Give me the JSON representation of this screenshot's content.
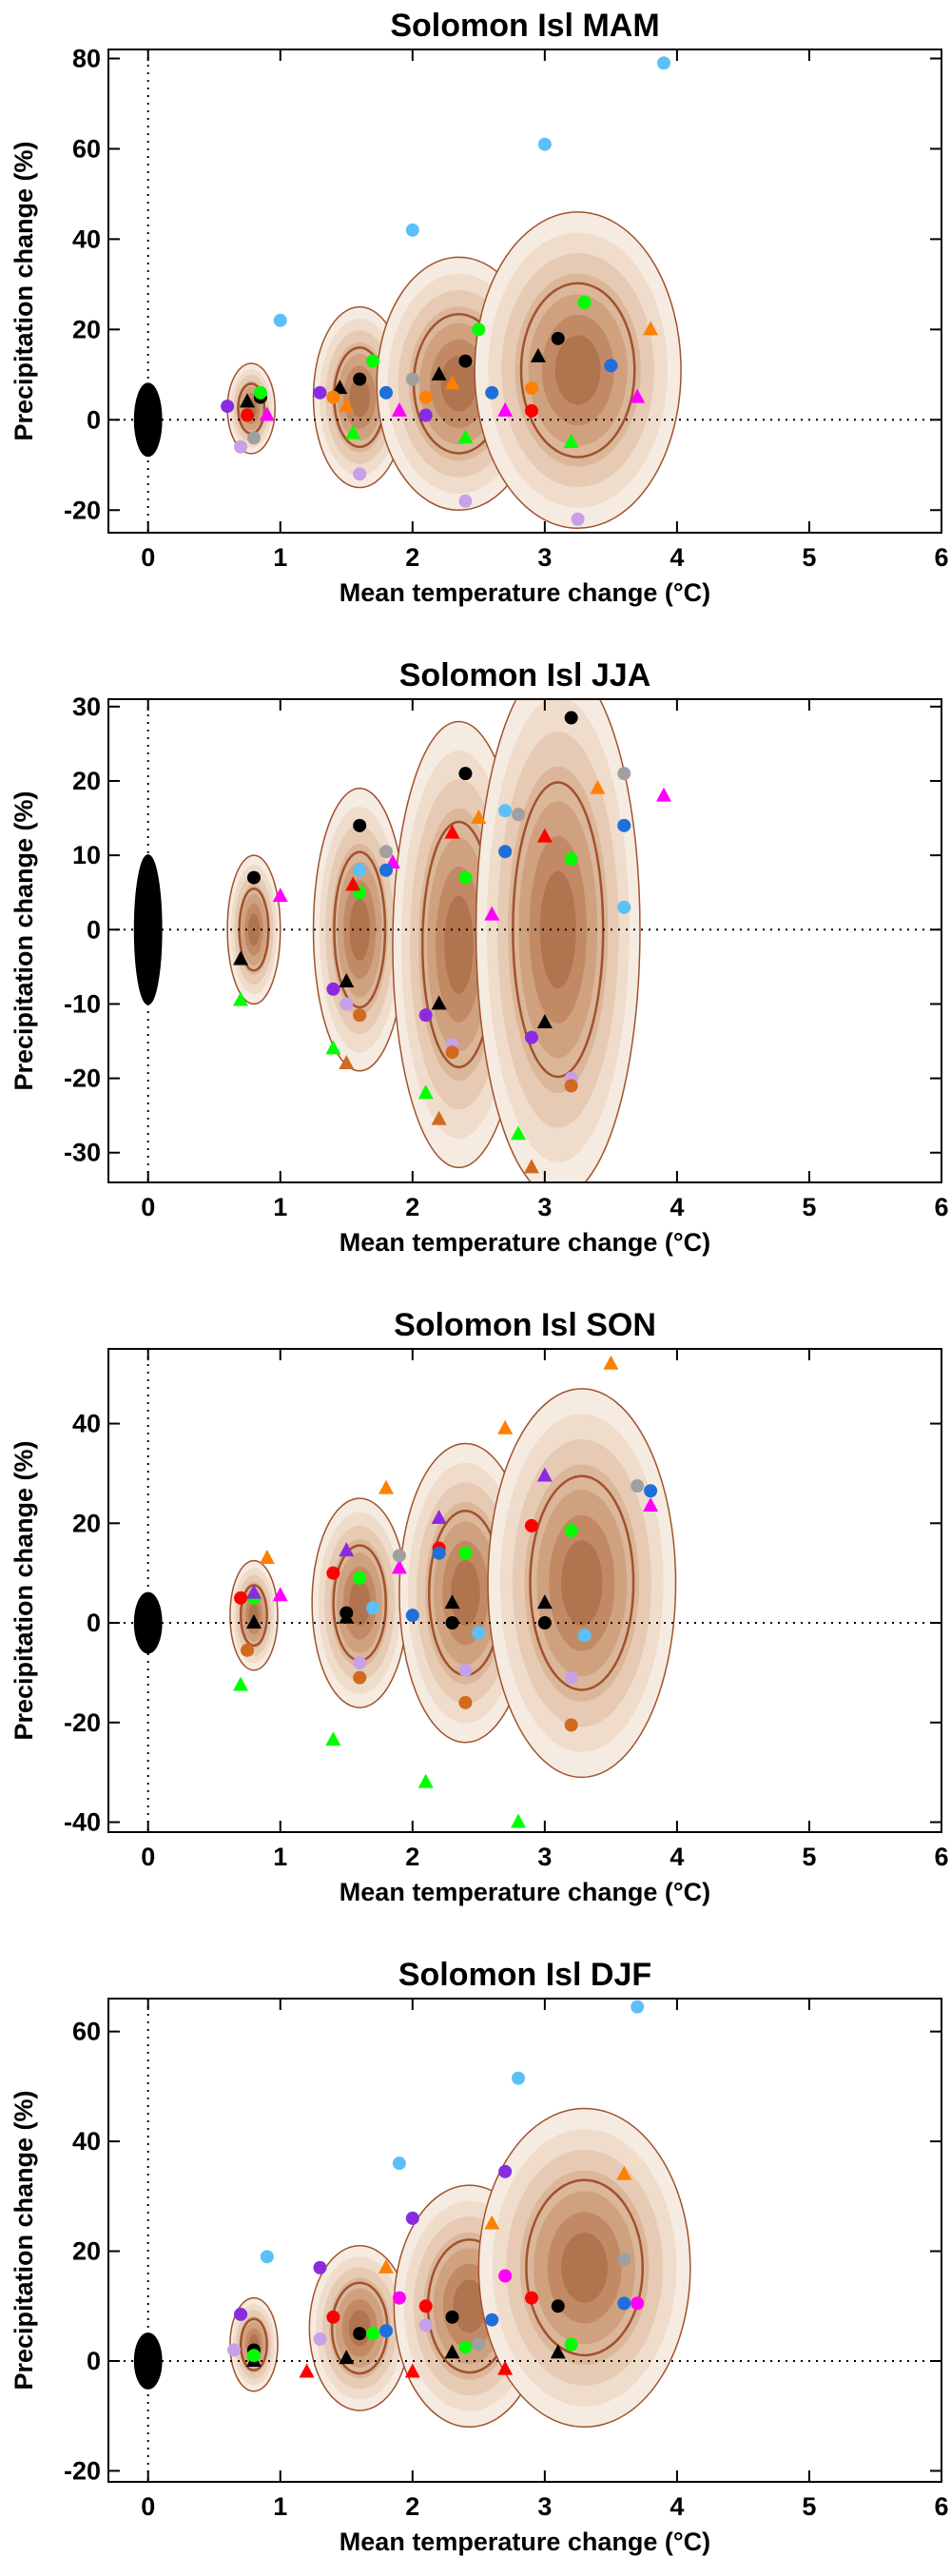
{
  "chart_data": [
    {
      "type": "scatter",
      "title": "Solomon Isl MAM",
      "x_label": "Mean temperature change (°C)",
      "y_label": "Precipitation change (%)",
      "xlim": [
        -0.3,
        6
      ],
      "xticks": [
        0,
        1,
        2,
        3,
        4,
        5,
        6
      ],
      "ylim": [
        -25,
        82
      ],
      "yticks": [
        -20,
        0,
        20,
        40,
        60,
        80
      ],
      "reference_lines": {
        "x": 0,
        "y": 0
      },
      "ellipses": [
        {
          "color": "#000000",
          "cx": 0,
          "rx": 0.1,
          "cy": 0,
          "ry": 8
        },
        {
          "color": "#a0522d",
          "cx": 0.78,
          "rx": 0.18,
          "cy": 2.5,
          "ry": 10
        },
        {
          "color": "#a0522d",
          "cx": 1.6,
          "rx": 0.35,
          "cy": 5,
          "ry": 20
        },
        {
          "color": "#a0522d",
          "cx": 2.35,
          "rx": 0.62,
          "cy": 8,
          "ry": 28
        },
        {
          "color": "#a0522d",
          "cx": 3.25,
          "rx": 0.78,
          "cy": 11,
          "ry": 35
        }
      ],
      "series": [
        {
          "color": "#5bc0f8",
          "marker": "circle",
          "x": [
            1.0,
            2.0,
            3.0,
            3.9
          ],
          "values": [
            22,
            42,
            61,
            79
          ]
        },
        {
          "color": "#000000",
          "marker": "circle",
          "x": [
            0.85,
            1.6,
            2.4,
            3.1
          ],
          "values": [
            5,
            9,
            13,
            18
          ]
        },
        {
          "color": "#000000",
          "marker": "triangle",
          "x": [
            0.75,
            1.45,
            2.2,
            2.95
          ],
          "values": [
            4,
            7,
            10,
            14
          ]
        },
        {
          "color": "#00ff00",
          "marker": "circle",
          "x": [
            0.85,
            1.7,
            2.5,
            3.3
          ],
          "values": [
            6,
            13,
            20,
            26
          ]
        },
        {
          "color": "#00ff00",
          "marker": "triangle",
          "x": [
            0.9,
            1.55,
            2.4,
            3.2
          ],
          "values": [
            1,
            -3,
            -4,
            -5
          ]
        },
        {
          "color": "#8a2be2",
          "marker": "circle",
          "x": [
            0.6,
            1.3,
            2.1,
            3.5
          ],
          "values": [
            3,
            6,
            1,
            12
          ]
        },
        {
          "color": "#c8a0e8",
          "marker": "circle",
          "x": [
            0.7,
            1.6,
            2.4,
            3.25
          ],
          "values": [
            -6,
            -12,
            -18,
            -22
          ]
        },
        {
          "color": "#ff8000",
          "marker": "triangle",
          "x": [
            1.5,
            2.3,
            3.8
          ],
          "values": [
            3,
            8,
            20
          ]
        },
        {
          "color": "#ff8000",
          "marker": "circle",
          "x": [
            1.4,
            2.1,
            2.9
          ],
          "values": [
            5,
            5,
            7
          ]
        },
        {
          "color": "#ff00ff",
          "marker": "triangle",
          "x": [
            0.9,
            1.9,
            2.7,
            3.7
          ],
          "values": [
            1,
            2,
            2,
            5
          ]
        },
        {
          "color": "#1e6fd9",
          "marker": "circle",
          "x": [
            1.8,
            2.6,
            3.5
          ],
          "values": [
            6,
            6,
            12
          ]
        },
        {
          "color": "#a0a0a0",
          "marker": "circle",
          "x": [
            0.8,
            2.0
          ],
          "values": [
            -4,
            9
          ]
        },
        {
          "color": "#ff0000",
          "marker": "circle",
          "x": [
            0.75,
            2.9
          ],
          "values": [
            1,
            2
          ]
        }
      ]
    },
    {
      "type": "scatter",
      "title": "Solomon Isl JJA",
      "x_label": "Mean temperature change (°C)",
      "y_label": "Precipitation change (%)",
      "xlim": [
        -0.3,
        6
      ],
      "xticks": [
        0,
        1,
        2,
        3,
        4,
        5,
        6
      ],
      "ylim": [
        -34,
        31
      ],
      "yticks": [
        -30,
        -20,
        -10,
        0,
        10,
        20,
        30
      ],
      "reference_lines": {
        "x": 0,
        "y": 0
      },
      "ellipses": [
        {
          "color": "#000000",
          "cx": 0,
          "rx": 0.1,
          "cy": 0,
          "ry": 10
        },
        {
          "color": "#a0522d",
          "cx": 0.8,
          "rx": 0.2,
          "cy": 0,
          "ry": 10
        },
        {
          "color": "#a0522d",
          "cx": 1.6,
          "rx": 0.35,
          "cy": 0,
          "ry": 19
        },
        {
          "color": "#a0522d",
          "cx": 2.35,
          "rx": 0.5,
          "cy": -2,
          "ry": 30
        },
        {
          "color": "#a0522d",
          "cx": 3.1,
          "rx": 0.62,
          "cy": 0,
          "ry": 36
        }
      ],
      "series": [
        {
          "color": "#000000",
          "marker": "circle",
          "x": [
            0.8,
            1.6,
            2.4,
            3.2
          ],
          "values": [
            7,
            14,
            21,
            28.5
          ]
        },
        {
          "color": "#000000",
          "marker": "triangle",
          "x": [
            0.7,
            1.5,
            2.2,
            3.0
          ],
          "values": [
            -4,
            -7,
            -10,
            -12.5
          ]
        },
        {
          "color": "#00ff00",
          "marker": "triangle",
          "x": [
            0.7,
            1.4,
            2.1,
            2.8
          ],
          "values": [
            -9.5,
            -16,
            -22,
            -27.5
          ]
        },
        {
          "color": "#00ff00",
          "marker": "circle",
          "x": [
            1.6,
            2.4,
            3.2
          ],
          "values": [
            5,
            7,
            9.5
          ]
        },
        {
          "color": "#d2691e",
          "marker": "triangle",
          "x": [
            1.5,
            2.2,
            2.9
          ],
          "values": [
            -18,
            -25.5,
            -32
          ]
        },
        {
          "color": "#ff8000",
          "marker": "triangle",
          "x": [
            2.5,
            3.4
          ],
          "values": [
            15,
            19
          ]
        },
        {
          "color": "#ff00ff",
          "marker": "triangle",
          "x": [
            1.0,
            1.85,
            2.6,
            3.9
          ],
          "values": [
            4.5,
            9,
            2,
            18
          ]
        },
        {
          "color": "#8a2be2",
          "marker": "circle",
          "x": [
            1.4,
            2.1,
            2.9
          ],
          "values": [
            -8,
            -11.5,
            -14.5
          ]
        },
        {
          "color": "#5bc0f8",
          "marker": "circle",
          "x": [
            1.6,
            2.7,
            3.6
          ],
          "values": [
            8,
            16,
            3
          ]
        },
        {
          "color": "#1e6fd9",
          "marker": "circle",
          "x": [
            1.8,
            2.7,
            3.6
          ],
          "values": [
            8,
            10.5,
            14
          ]
        },
        {
          "color": "#ff0000",
          "marker": "triangle",
          "x": [
            1.55,
            2.3,
            3.0
          ],
          "values": [
            6,
            13,
            12.5
          ]
        },
        {
          "color": "#a0a0a0",
          "marker": "circle",
          "x": [
            1.8,
            2.8,
            3.6
          ],
          "values": [
            10.5,
            15.5,
            21
          ]
        },
        {
          "color": "#c8a0e8",
          "marker": "circle",
          "x": [
            1.5,
            2.3,
            3.2
          ],
          "values": [
            -10,
            -15.5,
            -20
          ]
        },
        {
          "color": "#d2691e",
          "marker": "circle",
          "x": [
            1.6,
            2.3,
            3.2
          ],
          "values": [
            -11.5,
            -16.5,
            -21
          ]
        }
      ]
    },
    {
      "type": "scatter",
      "title": "Solomon Isl SON",
      "x_label": "Mean temperature change (°C)",
      "y_label": "Precipitation change (%)",
      "xlim": [
        -0.3,
        6
      ],
      "xticks": [
        0,
        1,
        2,
        3,
        4,
        5,
        6
      ],
      "ylim": [
        -42,
        55
      ],
      "yticks": [
        -40,
        -20,
        0,
        20,
        40
      ],
      "reference_lines": {
        "x": 0,
        "y": 0
      },
      "ellipses": [
        {
          "color": "#000000",
          "cx": 0,
          "rx": 0.1,
          "cy": 0,
          "ry": 6
        },
        {
          "color": "#a0522d",
          "cx": 0.8,
          "rx": 0.18,
          "cy": 1.5,
          "ry": 11
        },
        {
          "color": "#a0522d",
          "cx": 1.6,
          "rx": 0.36,
          "cy": 4,
          "ry": 21
        },
        {
          "color": "#a0522d",
          "cx": 2.4,
          "rx": 0.5,
          "cy": 6,
          "ry": 30
        },
        {
          "color": "#a0522d",
          "cx": 3.28,
          "rx": 0.71,
          "cy": 8,
          "ry": 39
        }
      ],
      "series": [
        {
          "color": "#ff8000",
          "marker": "triangle",
          "x": [
            0.9,
            1.8,
            2.7,
            3.5
          ],
          "values": [
            13,
            27,
            39,
            52
          ]
        },
        {
          "color": "#00ff00",
          "marker": "triangle",
          "x": [
            0.7,
            1.4,
            2.1,
            2.8
          ],
          "values": [
            -12.5,
            -23.5,
            -32,
            -40
          ]
        },
        {
          "color": "#00ff00",
          "marker": "circle",
          "x": [
            0.8,
            1.6,
            2.4,
            3.2
          ],
          "values": [
            5,
            9,
            14,
            18.5
          ]
        },
        {
          "color": "#8a2be2",
          "marker": "triangle",
          "x": [
            0.8,
            1.5,
            2.2,
            3.0
          ],
          "values": [
            6,
            14.5,
            21,
            29.5
          ]
        },
        {
          "color": "#000000",
          "marker": "triangle",
          "x": [
            0.8,
            1.5,
            2.3,
            3.0
          ],
          "values": [
            0,
            1,
            4,
            4
          ]
        },
        {
          "color": "#000000",
          "marker": "circle",
          "x": [
            1.5,
            2.3,
            3.0
          ],
          "values": [
            2,
            0,
            0
          ]
        },
        {
          "color": "#ff0000",
          "marker": "circle",
          "x": [
            0.7,
            1.4,
            2.2,
            2.9
          ],
          "values": [
            5,
            10,
            15,
            19.5
          ]
        },
        {
          "color": "#d2691e",
          "marker": "circle",
          "x": [
            0.75,
            1.6,
            2.4,
            3.2
          ],
          "values": [
            -5.5,
            -11,
            -16,
            -20.5
          ]
        },
        {
          "color": "#ff00ff",
          "marker": "triangle",
          "x": [
            1.0,
            1.9,
            3.8
          ],
          "values": [
            5.5,
            11,
            23.5
          ]
        },
        {
          "color": "#a0a0a0",
          "marker": "circle",
          "x": [
            1.9,
            3.7
          ],
          "values": [
            13.5,
            27.5
          ]
        },
        {
          "color": "#1e6fd9",
          "marker": "circle",
          "x": [
            2.0,
            2.2,
            3.8
          ],
          "values": [
            1.5,
            14,
            26.5
          ]
        },
        {
          "color": "#5bc0f8",
          "marker": "circle",
          "x": [
            1.7,
            2.5,
            3.3
          ],
          "values": [
            3,
            -2,
            -2.5
          ]
        },
        {
          "color": "#c8a0e8",
          "marker": "circle",
          "x": [
            1.6,
            2.4,
            3.2
          ],
          "values": [
            -8,
            -9.5,
            -11
          ]
        }
      ]
    },
    {
      "type": "scatter",
      "title": "Solomon Isl DJF",
      "x_label": "Mean temperature change (°C)",
      "y_label": "Precipitation change (%)",
      "xlim": [
        -0.3,
        6
      ],
      "xticks": [
        0,
        1,
        2,
        3,
        4,
        5,
        6
      ],
      "ylim": [
        -22,
        66
      ],
      "yticks": [
        -20,
        0,
        20,
        40,
        60
      ],
      "reference_lines": {
        "x": 0,
        "y": 0
      },
      "ellipses": [
        {
          "color": "#000000",
          "cx": 0,
          "rx": 0.1,
          "cy": 0,
          "ry": 5
        },
        {
          "color": "#a0522d",
          "cx": 0.8,
          "rx": 0.18,
          "cy": 3,
          "ry": 8.5
        },
        {
          "color": "#a0522d",
          "cx": 1.6,
          "rx": 0.38,
          "cy": 6,
          "ry": 15
        },
        {
          "color": "#a0522d",
          "cx": 2.43,
          "rx": 0.57,
          "cy": 10,
          "ry": 22
        },
        {
          "color": "#a0522d",
          "cx": 3.3,
          "rx": 0.8,
          "cy": 17,
          "ry": 29
        }
      ],
      "series": [
        {
          "color": "#5bc0f8",
          "marker": "circle",
          "x": [
            0.9,
            1.9,
            2.8,
            3.7
          ],
          "values": [
            19,
            36,
            51.5,
            64.5
          ]
        },
        {
          "color": "#8a2be2",
          "marker": "circle",
          "x": [
            0.7,
            1.3,
            2.0,
            2.7
          ],
          "values": [
            8.5,
            17,
            26,
            34.5
          ]
        },
        {
          "color": "#ff8000",
          "marker": "triangle",
          "x": [
            1.8,
            2.6,
            3.6
          ],
          "values": [
            17,
            25,
            34
          ]
        },
        {
          "color": "#ff0000",
          "marker": "triangle",
          "x": [
            1.2,
            2.0,
            2.7
          ],
          "values": [
            -2,
            -2,
            -1.5
          ]
        },
        {
          "color": "#ff0000",
          "marker": "circle",
          "x": [
            1.4,
            2.1,
            2.9
          ],
          "values": [
            8,
            10,
            11.5
          ]
        },
        {
          "color": "#000000",
          "marker": "circle",
          "x": [
            0.8,
            1.6,
            2.3,
            3.1
          ],
          "values": [
            2,
            5,
            8,
            10
          ]
        },
        {
          "color": "#000000",
          "marker": "triangle",
          "x": [
            0.8,
            1.5,
            2.3,
            3.1
          ],
          "values": [
            0,
            0.5,
            1.5,
            1.5
          ]
        },
        {
          "color": "#00ff00",
          "marker": "circle",
          "x": [
            0.8,
            1.7,
            2.4,
            3.2
          ],
          "values": [
            1,
            5,
            2.5,
            3
          ]
        },
        {
          "color": "#ff00ff",
          "marker": "circle",
          "x": [
            1.9,
            2.7,
            3.7
          ],
          "values": [
            11.5,
            15.5,
            10.5
          ]
        },
        {
          "color": "#a0a0a0",
          "marker": "circle",
          "x": [
            2.5,
            3.6
          ],
          "values": [
            3,
            18.5
          ]
        },
        {
          "color": "#1e6fd9",
          "marker": "circle",
          "x": [
            1.8,
            2.6,
            3.6
          ],
          "values": [
            5.5,
            7.5,
            10.5
          ]
        },
        {
          "color": "#c8a0e8",
          "marker": "circle",
          "x": [
            0.65,
            1.3,
            2.1
          ],
          "values": [
            2,
            4,
            6.5
          ]
        }
      ]
    }
  ]
}
